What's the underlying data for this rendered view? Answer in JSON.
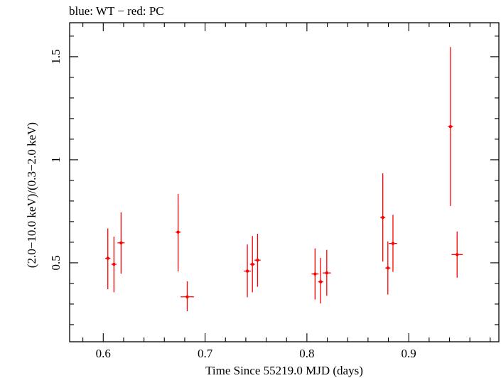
{
  "header": {
    "title": "blue: WT − red: PC"
  },
  "colors": {
    "frame": "#000000",
    "pc": "#ff0000",
    "background": "#ffffff"
  },
  "chart_data": {
    "type": "scatter",
    "title": "blue: WT − red: PC",
    "xlabel": "Time Since 55219.0 MJD (days)",
    "ylabel": "(2.0−10.0 keV)/(0.3−2.0 keV)",
    "xlim": [
      0.567,
      0.9885
    ],
    "ylim": [
      0.117,
      1.665
    ],
    "x_ticks": [
      0.6,
      0.7,
      0.8,
      0.9
    ],
    "x_tick_labels": [
      "0.6",
      "0.7",
      "0.8",
      "0.9"
    ],
    "y_ticks": [
      0.5,
      1,
      1.5
    ],
    "y_tick_labels": [
      "0.5",
      "1",
      "1.5"
    ],
    "grid": false,
    "series": [
      {
        "name": "PC",
        "color": "#ff0000",
        "points": [
          {
            "x": 0.6045,
            "xerr": 0.0025,
            "y": 0.522,
            "ylo": 0.372,
            "yhi": 0.667
          },
          {
            "x": 0.6105,
            "xerr": 0.0025,
            "y": 0.493,
            "ylo": 0.357,
            "yhi": 0.627
          },
          {
            "x": 0.6175,
            "xerr": 0.0035,
            "y": 0.597,
            "ylo": 0.447,
            "yhi": 0.745
          },
          {
            "x": 0.6735,
            "xerr": 0.0025,
            "y": 0.649,
            "ylo": 0.458,
            "yhi": 0.834
          },
          {
            "x": 0.6825,
            "xerr": 0.0065,
            "y": 0.335,
            "ylo": 0.265,
            "yhi": 0.41
          },
          {
            "x": 0.7415,
            "xerr": 0.0035,
            "y": 0.46,
            "ylo": 0.333,
            "yhi": 0.589
          },
          {
            "x": 0.7465,
            "xerr": 0.0025,
            "y": 0.493,
            "ylo": 0.357,
            "yhi": 0.63
          },
          {
            "x": 0.7515,
            "xerr": 0.003,
            "y": 0.513,
            "ylo": 0.384,
            "yhi": 0.641
          },
          {
            "x": 0.808,
            "xerr": 0.0035,
            "y": 0.446,
            "ylo": 0.322,
            "yhi": 0.57
          },
          {
            "x": 0.8135,
            "xerr": 0.0025,
            "y": 0.408,
            "ylo": 0.303,
            "yhi": 0.524
          },
          {
            "x": 0.8195,
            "xerr": 0.004,
            "y": 0.451,
            "ylo": 0.34,
            "yhi": 0.563
          },
          {
            "x": 0.8745,
            "xerr": 0.0025,
            "y": 0.72,
            "ylo": 0.506,
            "yhi": 0.934
          },
          {
            "x": 0.8795,
            "xerr": 0.0025,
            "y": 0.475,
            "ylo": 0.346,
            "yhi": 0.604
          },
          {
            "x": 0.8845,
            "xerr": 0.004,
            "y": 0.594,
            "ylo": 0.456,
            "yhi": 0.733
          },
          {
            "x": 0.941,
            "xerr": 0.0025,
            "y": 1.161,
            "ylo": 0.776,
            "yhi": 1.547
          },
          {
            "x": 0.9475,
            "xerr": 0.0055,
            "y": 0.54,
            "ylo": 0.428,
            "yhi": 0.652
          }
        ]
      }
    ]
  }
}
